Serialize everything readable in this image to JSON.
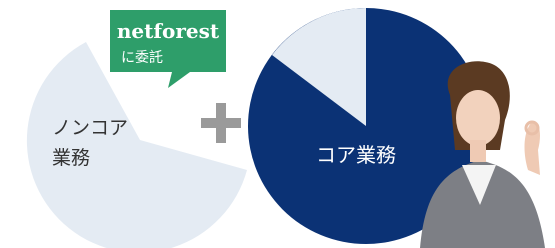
{
  "bubble": {
    "brand": "netforest",
    "text": "に委託"
  },
  "left": {
    "line1": "ノンコア",
    "line2": "業務"
  },
  "right": {
    "label": "コア業務"
  }
}
